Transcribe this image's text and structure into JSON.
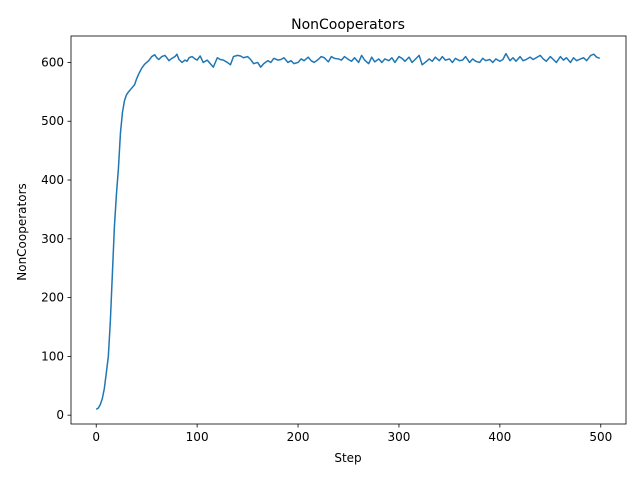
{
  "chart_data": {
    "type": "line",
    "title": "NonCooperators",
    "xlabel": "Step",
    "ylabel": "NonCooperators",
    "xlim": [
      -25,
      525
    ],
    "ylim": [
      -15,
      645
    ],
    "xticks": [
      0,
      100,
      200,
      300,
      400,
      500
    ],
    "yticks": [
      0,
      100,
      200,
      300,
      400,
      500,
      600
    ],
    "grid": false,
    "color": "#1f77b4",
    "series": [
      {
        "x": [
          0,
          2,
          4,
          6,
          8,
          10,
          12,
          14,
          16,
          18,
          20,
          22,
          24,
          26,
          28,
          30,
          32,
          35,
          38,
          40,
          42,
          45,
          48,
          50,
          52,
          55,
          58,
          60,
          62,
          65,
          68,
          70,
          72,
          75,
          78,
          80,
          82,
          85,
          88,
          90,
          92,
          95,
          98,
          100,
          103,
          106,
          110,
          113,
          116,
          120,
          123,
          126,
          130,
          133,
          136,
          140,
          143,
          146,
          150,
          153,
          156,
          160,
          163,
          166,
          170,
          173,
          176,
          180,
          183,
          186,
          190,
          193,
          196,
          200,
          203,
          206,
          210,
          213,
          216,
          220,
          223,
          226,
          230,
          233,
          236,
          240,
          243,
          246,
          250,
          253,
          256,
          260,
          263,
          266,
          270,
          273,
          276,
          280,
          283,
          286,
          290,
          293,
          296,
          300,
          303,
          306,
          310,
          313,
          316,
          320,
          323,
          326,
          330,
          333,
          336,
          340,
          343,
          346,
          350,
          353,
          356,
          360,
          363,
          366,
          370,
          373,
          376,
          380,
          383,
          386,
          390,
          393,
          396,
          400,
          403,
          406,
          410,
          413,
          416,
          420,
          423,
          426,
          430,
          433,
          436,
          440,
          443,
          446,
          450,
          453,
          456,
          460,
          463,
          466,
          470,
          473,
          476,
          480,
          483,
          486,
          490,
          493,
          496,
          499
        ],
        "y": [
          10,
          12,
          18,
          28,
          45,
          72,
          100,
          160,
          240,
          320,
          375,
          420,
          480,
          515,
          535,
          545,
          550,
          556,
          562,
          572,
          580,
          590,
          597,
          600,
          603,
          610,
          613,
          608,
          605,
          610,
          612,
          608,
          603,
          607,
          610,
          614,
          605,
          600,
          604,
          602,
          608,
          610,
          606,
          604,
          611,
          600,
          604,
          598,
          592,
          608,
          605,
          604,
          600,
          596,
          610,
          612,
          611,
          608,
          610,
          605,
          598,
          600,
          592,
          598,
          603,
          600,
          607,
          604,
          605,
          608,
          600,
          603,
          598,
          600,
          606,
          603,
          609,
          603,
          600,
          605,
          610,
          608,
          601,
          610,
          607,
          606,
          604,
          610,
          605,
          602,
          608,
          600,
          612,
          604,
          598,
          609,
          601,
          606,
          600,
          606,
          603,
          608,
          600,
          610,
          607,
          602,
          609,
          600,
          605,
          612,
          596,
          600,
          606,
          602,
          609,
          603,
          610,
          604,
          606,
          600,
          607,
          603,
          604,
          610,
          600,
          606,
          602,
          600,
          607,
          603,
          605,
          600,
          606,
          602,
          605,
          615,
          603,
          608,
          602,
          610,
          603,
          605,
          609,
          605,
          608,
          612,
          606,
          602,
          610,
          605,
          600,
          610,
          604,
          608,
          600,
          608,
          603,
          606,
          608,
          603,
          612,
          614,
          609,
          607
        ]
      }
    ]
  }
}
